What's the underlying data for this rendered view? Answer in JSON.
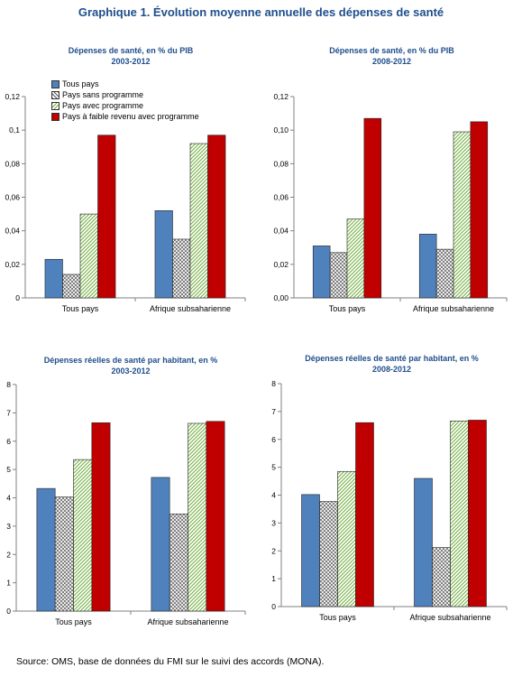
{
  "title": "Graphique 1. Évolution moyenne annuelle des dépenses de santé",
  "source": "Source: OMS, base de données du FMI sur le suivi des accords (MONA).",
  "colors": {
    "title": "#1f4e8c",
    "chart_title": "#1f4e8c",
    "tous_pays": "#4f81bd",
    "sans_programme": "#7f7f7f",
    "avec_programme": "#76b043",
    "faible_revenu": "#c00000"
  },
  "chart_data": [
    {
      "type": "bar",
      "title": "Dépenses de santé, en % du PIB",
      "subtitle": "2003-2012",
      "categories": [
        "Tous pays",
        "Afrique subsaharienne"
      ],
      "ylim": [
        0,
        0.12
      ],
      "yticks": [
        "0",
        "0,02",
        "0,04",
        "0,06",
        "0,08",
        "0,1",
        "0,12"
      ],
      "legend": "top-left",
      "series": [
        {
          "name": "Tous pays",
          "values": [
            0.023,
            0.052
          ]
        },
        {
          "name": "Pays sans programme",
          "values": [
            0.014,
            0.035
          ]
        },
        {
          "name": "Pays avec programme",
          "values": [
            0.05,
            0.092
          ]
        },
        {
          "name": "Pays à faible revenu avec programme",
          "values": [
            0.097,
            0.097
          ]
        }
      ]
    },
    {
      "type": "bar",
      "title": "Dépenses de santé, en % du PIB",
      "subtitle": "2008-2012",
      "categories": [
        "Tous pays",
        "Afrique subsaharienne"
      ],
      "ylim": [
        0,
        0.12
      ],
      "yticks": [
        "0,00",
        "0,02",
        "0,04",
        "0,06",
        "0,08",
        "0,10",
        "0,12"
      ],
      "series": [
        {
          "values": [
            0.031,
            0.038
          ]
        },
        {
          "values": [
            0.027,
            0.029
          ]
        },
        {
          "values": [
            0.047,
            0.099
          ]
        },
        {
          "values": [
            0.107,
            0.105
          ]
        }
      ]
    },
    {
      "type": "bar",
      "title": "Dépenses réelles de santé par habitant, en %",
      "subtitle": "2003-2012",
      "categories": [
        "Tous pays",
        "Afrique subsaharienne"
      ],
      "ylim": [
        0,
        8
      ],
      "yticks": [
        "0",
        "1",
        "2",
        "3",
        "4",
        "5",
        "6",
        "7",
        "8"
      ],
      "series": [
        {
          "values": [
            4.33,
            4.72
          ]
        },
        {
          "values": [
            4.03,
            3.43
          ]
        },
        {
          "values": [
            5.35,
            6.63
          ]
        },
        {
          "values": [
            6.65,
            6.7
          ]
        }
      ]
    },
    {
      "type": "bar",
      "title": "Dépenses réelles de santé par habitant, en %",
      "subtitle": "2008-2012",
      "categories": [
        "Tous pays",
        "Afrique subsaharienne"
      ],
      "ylim": [
        0,
        8
      ],
      "yticks": [
        "0",
        "1",
        "2",
        "3",
        "4",
        "5",
        "6",
        "7",
        "8"
      ],
      "series": [
        {
          "values": [
            4.02,
            4.6
          ]
        },
        {
          "values": [
            3.77,
            2.12
          ]
        },
        {
          "values": [
            4.85,
            6.66
          ]
        },
        {
          "values": [
            6.6,
            6.69
          ]
        }
      ]
    }
  ]
}
